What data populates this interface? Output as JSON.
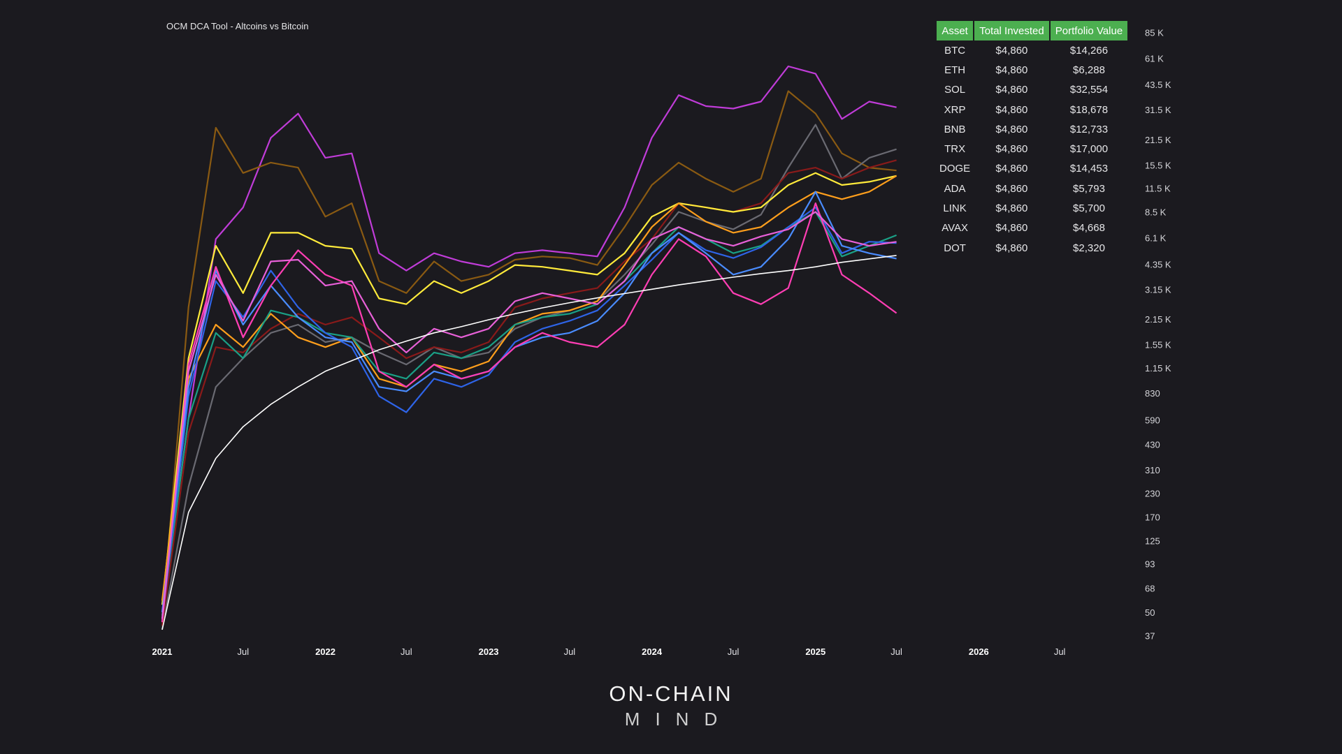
{
  "chart_data": {
    "type": "line",
    "title": "OCM DCA Tool - Altcoins vs Bitcoin",
    "y_scale": "log",
    "ylim": [
      34,
      90000
    ],
    "y_ticks": [
      {
        "value": 85000,
        "label": "85 K"
      },
      {
        "value": 61000,
        "label": "61 K"
      },
      {
        "value": 43500,
        "label": "43.5 K"
      },
      {
        "value": 31500,
        "label": "31.5 K"
      },
      {
        "value": 21500,
        "label": "21.5 K"
      },
      {
        "value": 15500,
        "label": "15.5 K"
      },
      {
        "value": 11500,
        "label": "11.5 K"
      },
      {
        "value": 8500,
        "label": "8.5 K"
      },
      {
        "value": 6100,
        "label": "6.1 K"
      },
      {
        "value": 4350,
        "label": "4.35 K"
      },
      {
        "value": 3150,
        "label": "3.15 K"
      },
      {
        "value": 2150,
        "label": "2.15 K"
      },
      {
        "value": 1550,
        "label": "1.55 K"
      },
      {
        "value": 1150,
        "label": "1.15 K"
      },
      {
        "value": 830,
        "label": "830"
      },
      {
        "value": 590,
        "label": "590"
      },
      {
        "value": 430,
        "label": "430"
      },
      {
        "value": 310,
        "label": "310"
      },
      {
        "value": 230,
        "label": "230"
      },
      {
        "value": 170,
        "label": "170"
      },
      {
        "value": 125,
        "label": "125"
      },
      {
        "value": 93,
        "label": "93"
      },
      {
        "value": 68,
        "label": "68"
      },
      {
        "value": 50,
        "label": "50"
      },
      {
        "value": 37,
        "label": "37"
      }
    ],
    "x_range": [
      "2021-01-01",
      "2026-10-01"
    ],
    "x_ticks": [
      {
        "date": "2021-01-01",
        "label": "2021",
        "major": true
      },
      {
        "date": "2021-07-01",
        "label": "Jul",
        "major": false
      },
      {
        "date": "2022-01-01",
        "label": "2022",
        "major": true
      },
      {
        "date": "2022-07-01",
        "label": "Jul",
        "major": false
      },
      {
        "date": "2023-01-01",
        "label": "2023",
        "major": true
      },
      {
        "date": "2023-07-01",
        "label": "Jul",
        "major": false
      },
      {
        "date": "2024-01-01",
        "label": "2024",
        "major": true
      },
      {
        "date": "2024-07-01",
        "label": "Jul",
        "major": false
      },
      {
        "date": "2025-01-01",
        "label": "2025",
        "major": true
      },
      {
        "date": "2025-07-01",
        "label": "Jul",
        "major": false
      },
      {
        "date": "2026-01-01",
        "label": "2026",
        "major": true
      },
      {
        "date": "2026-07-01",
        "label": "Jul",
        "major": false
      }
    ],
    "grid": false,
    "x": [
      "2021-01-01",
      "2021-03-01",
      "2021-05-01",
      "2021-07-01",
      "2021-09-01",
      "2021-11-01",
      "2022-01-01",
      "2022-03-01",
      "2022-05-01",
      "2022-07-01",
      "2022-09-01",
      "2022-11-01",
      "2023-01-01",
      "2023-03-01",
      "2023-05-01",
      "2023-07-01",
      "2023-09-01",
      "2023-11-01",
      "2024-01-01",
      "2024-03-01",
      "2024-05-01",
      "2024-07-01",
      "2024-09-01",
      "2024-11-01",
      "2025-01-01",
      "2025-03-01",
      "2025-05-01",
      "2025-07-01"
    ],
    "series": [
      {
        "color": "#c03cd8",
        "values": [
          50,
          600,
          6000,
          9000,
          22000,
          30000,
          17000,
          18000,
          5000,
          4000,
          5000,
          4500,
          4200,
          5000,
          5200,
          5000,
          4800,
          9000,
          22000,
          38000,
          33000,
          32000,
          35000,
          55000,
          50000,
          28000,
          35000,
          32500
        ]
      },
      {
        "color": "#8a5a12",
        "values": [
          45,
          2500,
          25000,
          14000,
          16000,
          15000,
          8000,
          9500,
          3500,
          3000,
          4500,
          3500,
          3800,
          4600,
          4800,
          4700,
          4300,
          7000,
          12000,
          16000,
          13000,
          11000,
          13000,
          40000,
          30000,
          18000,
          15000,
          14453
        ]
      },
      {
        "color": "#6a6a72",
        "values": [
          40,
          250,
          900,
          1300,
          1800,
          2000,
          1600,
          1700,
          1400,
          1200,
          1500,
          1300,
          1400,
          1900,
          2200,
          2400,
          2700,
          3800,
          5600,
          8500,
          7500,
          6800,
          8200,
          15000,
          26000,
          13000,
          17000,
          19000
        ]
      },
      {
        "color": "#8a1a1a",
        "values": [
          42,
          500,
          1500,
          1400,
          1900,
          2300,
          2000,
          2200,
          1700,
          1300,
          1500,
          1400,
          1600,
          2500,
          2800,
          3000,
          3200,
          4500,
          6000,
          9500,
          9000,
          8500,
          9500,
          14000,
          15000,
          13000,
          15000,
          16500
        ]
      },
      {
        "color": "#ffeb3b",
        "values": [
          55,
          1300,
          5500,
          3000,
          6500,
          6500,
          5500,
          5300,
          2800,
          2600,
          3500,
          3000,
          3500,
          4300,
          4200,
          4000,
          3800,
          5000,
          8000,
          9500,
          9000,
          8500,
          9000,
          12000,
          14000,
          12000,
          12500,
          13500
        ]
      },
      {
        "color": "#ff9f1c",
        "values": [
          58,
          1000,
          2000,
          1500,
          2300,
          1700,
          1500,
          1700,
          1000,
          900,
          1200,
          1100,
          1250,
          2000,
          2300,
          2400,
          2700,
          4300,
          7000,
          9500,
          7500,
          6500,
          7000,
          9000,
          11000,
          10000,
          11000,
          13500
        ]
      },
      {
        "color": "#1aa086",
        "values": [
          48,
          600,
          1800,
          1300,
          2400,
          2200,
          1800,
          1700,
          1100,
          1000,
          1400,
          1300,
          1500,
          2000,
          2200,
          2300,
          2600,
          3500,
          5000,
          7000,
          6000,
          5000,
          5500,
          7000,
          8500,
          4800,
          5500,
          6300
        ]
      },
      {
        "color": "#2e64e8",
        "values": [
          45,
          800,
          3500,
          2200,
          4000,
          2500,
          1800,
          1500,
          800,
          650,
          1000,
          900,
          1050,
          1600,
          1900,
          2100,
          2400,
          3300,
          4600,
          6500,
          5200,
          4700,
          5400,
          7000,
          9000,
          5000,
          5800,
          5700
        ]
      },
      {
        "color": "#4a8cff",
        "values": [
          50,
          900,
          4000,
          2000,
          3300,
          2200,
          1700,
          1600,
          900,
          850,
          1100,
          1000,
          1100,
          1500,
          1700,
          1800,
          2100,
          3000,
          5000,
          6500,
          5000,
          3800,
          4200,
          6000,
          11000,
          5500,
          5000,
          4668
        ]
      },
      {
        "color": "#ff3eb4",
        "values": [
          44,
          1200,
          4200,
          1700,
          3300,
          5200,
          3800,
          3300,
          1100,
          900,
          1200,
          1000,
          1100,
          1500,
          1800,
          1600,
          1500,
          2000,
          3800,
          6000,
          4800,
          3000,
          2600,
          3200,
          9500,
          3800,
          3000,
          2320
        ]
      },
      {
        "color": "#e860d8",
        "values": [
          46,
          1100,
          3800,
          2100,
          4500,
          4600,
          3300,
          3500,
          1900,
          1400,
          1900,
          1700,
          1900,
          2700,
          3000,
          2800,
          2600,
          3500,
          6000,
          7000,
          6000,
          5500,
          6200,
          6800,
          8500,
          6000,
          5500,
          5793
        ]
      },
      {
        "color": "#ffffff",
        "values": [
          40,
          180,
          360,
          540,
          720,
          900,
          1100,
          1260,
          1450,
          1620,
          1800,
          1950,
          2130,
          2300,
          2480,
          2650,
          2820,
          2980,
          3150,
          3330,
          3500,
          3680,
          3850,
          4000,
          4200,
          4450,
          4650,
          4860
        ]
      }
    ],
    "table": {
      "headers": [
        "Asset",
        "Total Invested",
        "Portfolio Value"
      ],
      "rows": [
        [
          "BTC",
          "$4,860",
          "$14,266"
        ],
        [
          "ETH",
          "$4,860",
          "$6,288"
        ],
        [
          "SOL",
          "$4,860",
          "$32,554"
        ],
        [
          "XRP",
          "$4,860",
          "$18,678"
        ],
        [
          "BNB",
          "$4,860",
          "$12,733"
        ],
        [
          "TRX",
          "$4,860",
          "$17,000"
        ],
        [
          "DOGE",
          "$4,860",
          "$14,453"
        ],
        [
          "ADA",
          "$4,860",
          "$5,793"
        ],
        [
          "LINK",
          "$4,860",
          "$5,700"
        ],
        [
          "AVAX",
          "$4,860",
          "$4,668"
        ],
        [
          "DOT",
          "$4,860",
          "$2,320"
        ]
      ]
    }
  },
  "branding": {
    "logo_main": "ON-CHAIN",
    "logo_sub": "MIND"
  }
}
